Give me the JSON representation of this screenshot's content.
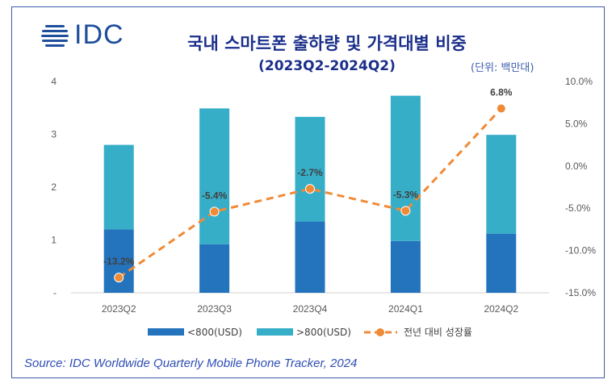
{
  "logo": {
    "text": "IDC"
  },
  "header": {
    "title": "국내 스마트폰 출하량 및 가격대별 비중",
    "subtitle": "(2023Q2-2024Q2)",
    "unit": "(단위: 백만대)"
  },
  "source": "Source: IDC Worldwide Quarterly Mobile Phone Tracker, 2024",
  "colors": {
    "under800": "#2474bd",
    "over800": "#37aec8",
    "growth": "#f08a36",
    "frame": "#3b5aa8",
    "title": "#1a2e8a"
  },
  "chart_data": {
    "type": "bar",
    "stacked": true,
    "categories": [
      "2023Q2",
      "2023Q3",
      "2023Q4",
      "2024Q1",
      "2024Q2"
    ],
    "series": [
      {
        "name": "<800(USD)",
        "values": [
          1.2,
          0.92,
          1.35,
          0.98,
          1.12
        ]
      },
      {
        "name": ">800(USD)",
        "values": [
          1.6,
          2.57,
          1.98,
          2.75,
          1.87
        ]
      }
    ],
    "line_series": {
      "name": "전년 대비 성장률",
      "values": [
        -13.2,
        -5.4,
        -2.7,
        -5.3,
        6.8
      ],
      "labels": [
        "-13.2%",
        "-5.4%",
        "-2.7%",
        "-5.3%",
        "6.8%"
      ]
    },
    "ylim": [
      0,
      4
    ],
    "y_ticks": [
      "-",
      "1",
      "2",
      "3",
      "4"
    ],
    "y2lim": [
      -15,
      10
    ],
    "y2_ticks": [
      "-15.0%",
      "-10.0%",
      "-5.0%",
      "0.0%",
      "5.0%",
      "10.0%"
    ],
    "legend_position": "bottom",
    "grid": false
  }
}
